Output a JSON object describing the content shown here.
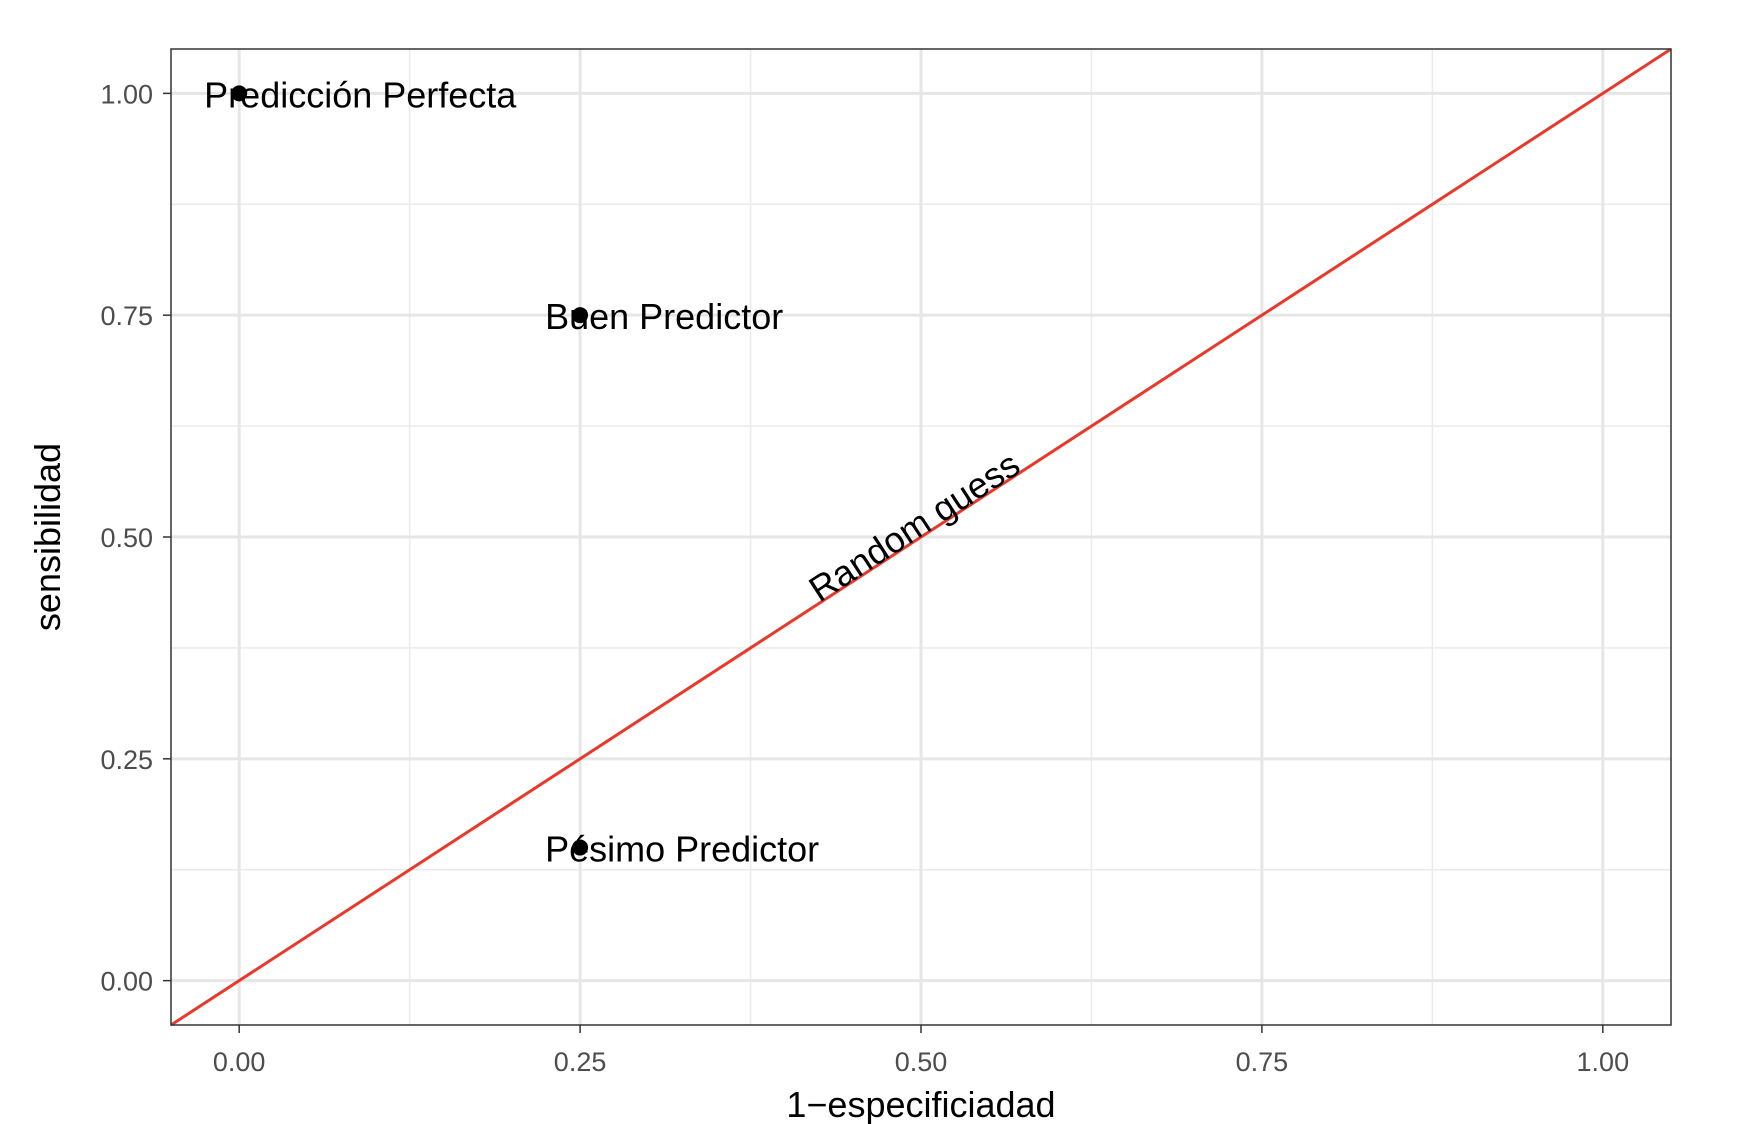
{
  "chart_data": {
    "type": "scatter",
    "title": "",
    "xlabel": "1−especificiadad",
    "ylabel": "sensibilidad",
    "xlim": [
      -0.05,
      1.05
    ],
    "ylim": [
      -0.05,
      1.05
    ],
    "x_ticks": [
      "0.00",
      "0.25",
      "0.50",
      "0.75",
      "1.00"
    ],
    "y_ticks": [
      "0.00",
      "0.25",
      "0.50",
      "0.75",
      "1.00"
    ],
    "grid": true,
    "points": [
      {
        "x": 0.0,
        "y": 1.0,
        "label": "Predicción Perfecta"
      },
      {
        "x": 0.25,
        "y": 0.75,
        "label": "Buen Predictor"
      },
      {
        "x": 0.25,
        "y": 0.15,
        "label": "Pésimo Predictor"
      }
    ],
    "reference_line": {
      "from": [
        0,
        0
      ],
      "to": [
        1,
        1
      ],
      "color": "#e8392a",
      "label": "Random guess",
      "label_at": [
        0.5,
        0.5
      ]
    }
  }
}
